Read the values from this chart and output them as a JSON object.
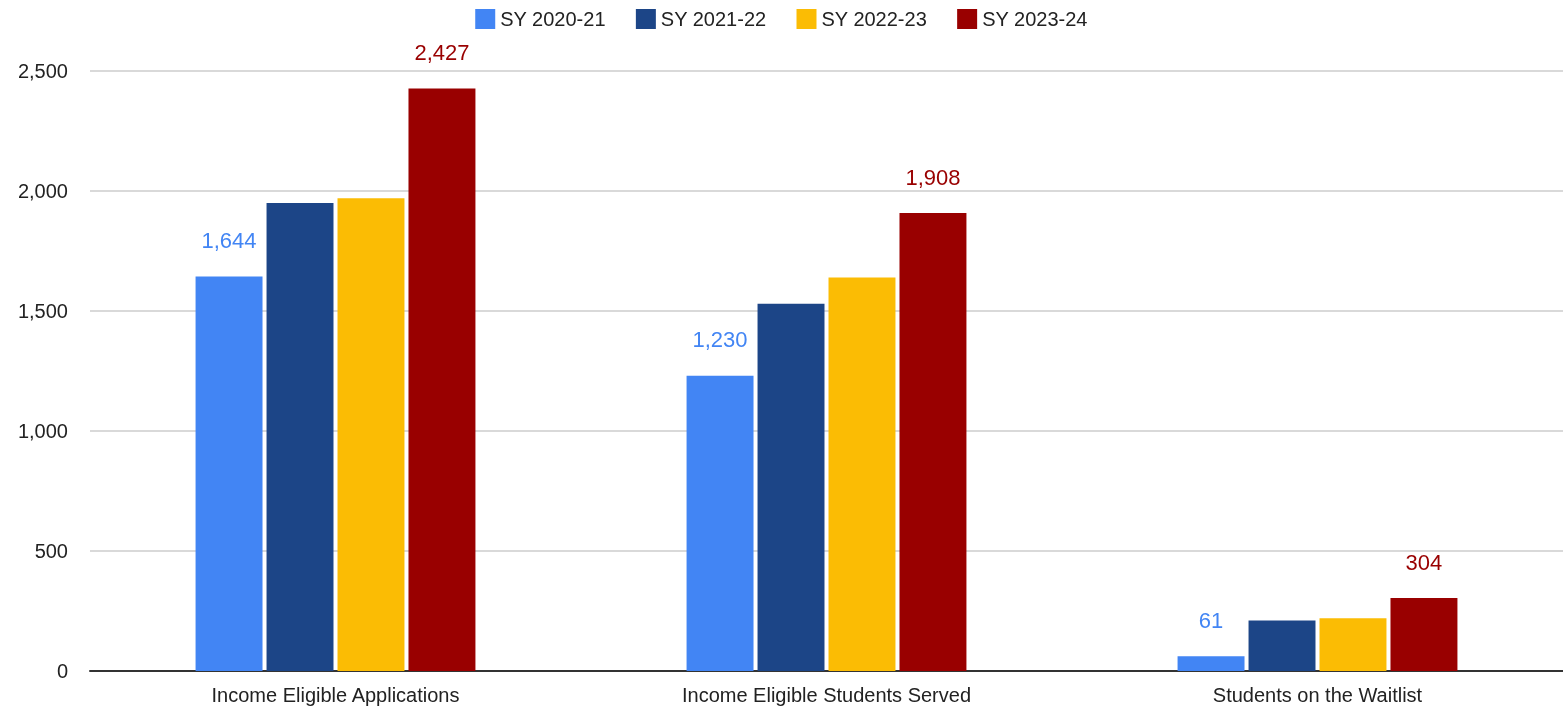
{
  "chart_data": {
    "type": "bar",
    "categories": [
      "Income Eligible Applications",
      "Income Eligible Students Served",
      "Students on the Waitlist"
    ],
    "series": [
      {
        "name": "SY 2020-21",
        "color": "#4285f4",
        "values": [
          1644,
          1230,
          61
        ],
        "value_labels": [
          "1,644",
          "1,230",
          "61"
        ]
      },
      {
        "name": "SY 2021-22",
        "color": "#1c4587",
        "values": [
          1950,
          1530,
          210
        ]
      },
      {
        "name": "SY 2022-23",
        "color": "#fbbc04",
        "values": [
          1970,
          1640,
          220
        ]
      },
      {
        "name": "SY 2023-24",
        "color": "#990000",
        "values": [
          2427,
          1908,
          304
        ],
        "value_labels": [
          "2,427",
          "1,908",
          "304"
        ]
      }
    ],
    "ylim": [
      0,
      2500
    ],
    "yticks": [
      0,
      500,
      {
        "value": 1000,
        "label": "1,000"
      },
      {
        "value": 1500,
        "label": "1,500"
      },
      {
        "value": 2000,
        "label": "2,000"
      },
      {
        "value": 2500,
        "label": "2,500"
      }
    ],
    "grid": "y",
    "legend": "top"
  }
}
